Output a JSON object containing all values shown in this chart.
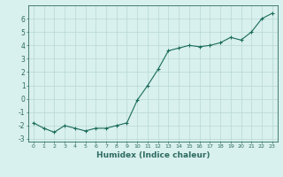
{
  "xlabel": "Humidex (Indice chaleur)",
  "ylabel": "",
  "x": [
    0,
    1,
    2,
    3,
    4,
    5,
    6,
    7,
    8,
    9,
    10,
    11,
    12,
    13,
    14,
    15,
    16,
    17,
    18,
    19,
    20,
    21,
    22,
    23
  ],
  "y": [
    -1.8,
    -2.2,
    -2.5,
    -2.0,
    -2.2,
    -2.4,
    -2.2,
    -2.2,
    -2.0,
    -1.8,
    -0.1,
    1.0,
    2.2,
    3.6,
    3.8,
    4.0,
    3.9,
    4.0,
    4.2,
    4.6,
    4.4,
    5.0,
    6.0,
    6.4
  ],
  "line_color": "#1a6b5a",
  "marker": "+",
  "markersize": 3,
  "linewidth": 0.8,
  "background_color": "#d8f0ee",
  "grid_color": "#b8d8d4",
  "axis_color": "#2e6b60",
  "spine_color": "#2e6b60",
  "xlim": [
    -0.5,
    23.5
  ],
  "ylim": [
    -3.2,
    7.0
  ],
  "yticks": [
    -3,
    -2,
    -1,
    0,
    1,
    2,
    3,
    4,
    5,
    6
  ],
  "xticks": [
    0,
    1,
    2,
    3,
    4,
    5,
    6,
    7,
    8,
    9,
    10,
    11,
    12,
    13,
    14,
    15,
    16,
    17,
    18,
    19,
    20,
    21,
    22,
    23
  ],
  "xtick_fontsize": 4.5,
  "ytick_fontsize": 5.5,
  "label_fontsize": 6.5,
  "label_fontweight": "bold"
}
